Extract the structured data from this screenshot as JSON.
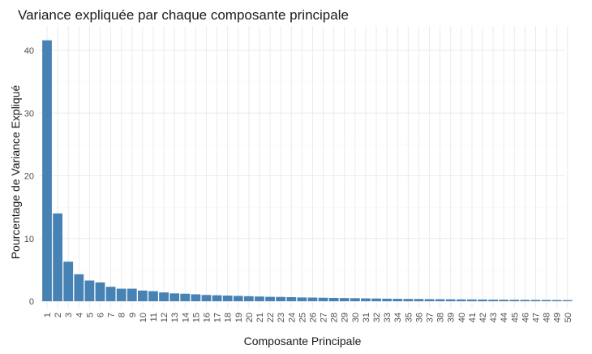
{
  "chart_data": {
    "type": "bar",
    "title": "Variance expliquée par chaque composante principale",
    "xlabel": "Composante Principale",
    "ylabel": "Pourcentage de Variance Expliqué",
    "ylim": [
      0,
      43
    ],
    "yticks": [
      0,
      10,
      20,
      30,
      40
    ],
    "grid": true,
    "bar_color": "#4682B4",
    "categories": [
      "1",
      "2",
      "3",
      "4",
      "5",
      "6",
      "7",
      "8",
      "9",
      "10",
      "11",
      "12",
      "13",
      "14",
      "15",
      "16",
      "17",
      "18",
      "19",
      "20",
      "21",
      "22",
      "23",
      "24",
      "25",
      "26",
      "27",
      "28",
      "29",
      "30",
      "31",
      "32",
      "33",
      "34",
      "35",
      "36",
      "37",
      "38",
      "39",
      "40",
      "41",
      "42",
      "43",
      "44",
      "45",
      "46",
      "47",
      "48",
      "49",
      "50"
    ],
    "values": [
      41.6,
      14.0,
      6.3,
      4.3,
      3.3,
      3.0,
      2.3,
      2.0,
      2.0,
      1.7,
      1.6,
      1.4,
      1.25,
      1.2,
      1.1,
      1.0,
      0.95,
      0.9,
      0.85,
      0.8,
      0.75,
      0.7,
      0.68,
      0.65,
      0.6,
      0.58,
      0.55,
      0.52,
      0.5,
      0.48,
      0.45,
      0.43,
      0.4,
      0.38,
      0.36,
      0.35,
      0.33,
      0.32,
      0.3,
      0.29,
      0.28,
      0.27,
      0.25,
      0.24,
      0.23,
      0.22,
      0.21,
      0.2,
      0.19,
      0.18
    ]
  }
}
